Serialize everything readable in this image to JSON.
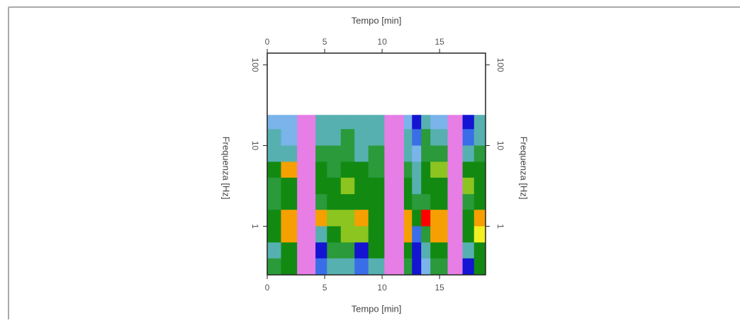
{
  "chart_data": {
    "type": "heatmap",
    "x_title": "Tempo [min]",
    "y_title": "Frequenza [Hz]",
    "x_bins": [
      0,
      1.2,
      2.6,
      4.2,
      5.2,
      6.4,
      7.6,
      8.8,
      10.2,
      11.9,
      12.6,
      13.4,
      14.2,
      15.7,
      17.0,
      18.0,
      19.0
    ],
    "y_bins": [
      24,
      16,
      10,
      6.3,
      4,
      2.5,
      1.6,
      1.0,
      0.63,
      0.4,
      0.25
    ],
    "values": [
      [
        0.25,
        0.2,
        null,
        0.3,
        0.35,
        0.3,
        0.35,
        0.3,
        null,
        0.2,
        0.05,
        0.35,
        0.25,
        null,
        0.05,
        0.35
      ],
      [
        0.3,
        0.25,
        null,
        0.35,
        0.3,
        0.4,
        0.3,
        0.35,
        null,
        0.3,
        0.1,
        0.4,
        0.35,
        null,
        0.1,
        0.3
      ],
      [
        0.35,
        0.3,
        null,
        0.4,
        0.45,
        0.4,
        0.35,
        0.4,
        null,
        0.3,
        0.2,
        0.45,
        0.4,
        null,
        0.3,
        0.45
      ],
      [
        0.5,
        0.85,
        null,
        0.5,
        0.45,
        0.5,
        0.55,
        0.45,
        null,
        0.4,
        0.3,
        0.5,
        0.7,
        null,
        0.55,
        0.6
      ],
      [
        0.4,
        0.6,
        null,
        0.55,
        0.6,
        0.65,
        0.6,
        0.55,
        null,
        0.5,
        0.35,
        0.6,
        0.55,
        null,
        0.65,
        0.55
      ],
      [
        0.45,
        0.5,
        null,
        0.45,
        0.55,
        0.5,
        0.6,
        0.5,
        null,
        0.55,
        0.4,
        0.45,
        0.5,
        null,
        0.45,
        0.5
      ],
      [
        0.6,
        0.92,
        null,
        0.85,
        0.65,
        0.7,
        0.85,
        0.55,
        null,
        0.92,
        0.6,
        1.0,
        0.9,
        null,
        0.55,
        0.85
      ],
      [
        0.55,
        0.9,
        null,
        0.3,
        0.6,
        0.65,
        0.7,
        0.6,
        null,
        0.85,
        0.1,
        0.4,
        0.85,
        null,
        0.5,
        0.75
      ],
      [
        0.35,
        0.6,
        null,
        0.05,
        0.45,
        0.4,
        0.05,
        0.5,
        null,
        0.6,
        0.05,
        0.35,
        0.55,
        null,
        0.3,
        0.6
      ],
      [
        0.4,
        0.55,
        null,
        0.1,
        0.3,
        0.35,
        0.1,
        0.35,
        null,
        0.4,
        0.05,
        0.2,
        0.4,
        null,
        0.05,
        0.55
      ]
    ],
    "xlim": [
      0,
      19
    ],
    "ylim": [
      0.25,
      140
    ],
    "xticks": [
      0,
      5,
      10,
      15
    ],
    "yticks": [
      1,
      10,
      100
    ],
    "log_y": true,
    "colormap": [
      "#1414d2",
      "#3a6ee8",
      "#7ab4ea",
      "#56b0b0",
      "#2a9a3a",
      "#128a12",
      "#8cc420",
      "#f2f020",
      "#f5a000",
      "#ff0000"
    ],
    "null_color": "#e67ee6"
  }
}
